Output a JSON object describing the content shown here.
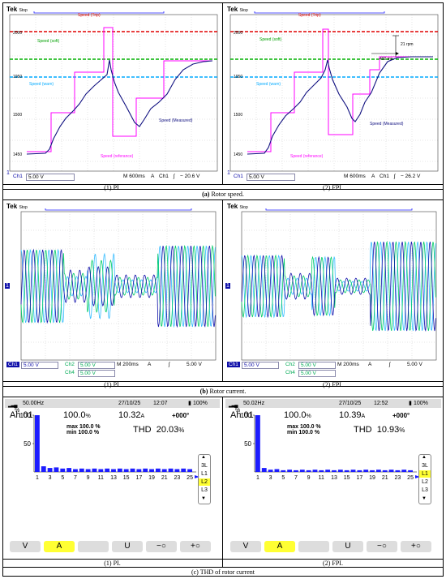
{
  "sections": [
    {
      "id": "a",
      "caption_letter": "(a)",
      "caption_text": "Rotor speed."
    },
    {
      "id": "b",
      "caption_letter": "(b)",
      "caption_text": "Rotor current."
    },
    {
      "id": "c",
      "caption_letter": "(c)",
      "caption_text": "THD of rotor current"
    }
  ],
  "sub_captions": {
    "left": "(1) PI.",
    "right": "(2) FPI."
  },
  "speed_scopes": [
    {
      "tek": "Tek",
      "stop": "Stop",
      "labels": {
        "trip": "Speed (Trip)",
        "soft": "Speed (soft)",
        "warn": "Speed (warn)",
        "ref": "Speed (referance)",
        "meas": "Speed (Measured)"
      },
      "yticks": [
        "2000",
        "1950",
        "1500",
        "1450"
      ],
      "status": {
        "ch": "Ch1",
        "volts": "5.00 V",
        "time": "M 600ms",
        "mode": "A",
        "trig_ch": "Ch1",
        "trig_sym": "ʃ",
        "trig_val": "− 20.6 V"
      },
      "marker": "1"
    },
    {
      "tek": "Tek",
      "stop": "Stop",
      "labels": {
        "trip": "Speed (Trip)",
        "soft": "Speed (soft)",
        "warn": "Speed (warn)",
        "ref": "Speed (referance)",
        "meas": "Speed (Measured)",
        "rpm": "21 rpm",
        "ms": "400 ms"
      },
      "yticks": [
        "2000",
        "1950",
        "1500",
        "1450"
      ],
      "status": {
        "ch": "Ch1",
        "volts": "5.00 V",
        "time": "M 600ms",
        "mode": "A",
        "trig_ch": "Ch1",
        "trig_sym": "ʃ",
        "trig_val": "− 26.2 V"
      },
      "marker": "1"
    }
  ],
  "current_scopes": [
    {
      "tek": "Tek",
      "stop": "Stop",
      "ch1": "Ch1",
      "ch1v": "5.00 V",
      "ch2": "Ch2",
      "ch2v": "5.00 V",
      "ch4": "Ch4",
      "ch4v": "5.00 V",
      "time": "M 200ms",
      "mode": "A",
      "trig_sym": "ʃ",
      "trig_val": "5.00 V",
      "marker": "1"
    },
    {
      "tek": "Tek",
      "stop": "Stop",
      "ch1": "Ch1",
      "ch1v": "5.00 V",
      "ch2": "Ch2",
      "ch2v": "5.00 V",
      "ch4": "Ch4",
      "ch4v": "5.00 V",
      "time": "M 200ms",
      "mode": "A",
      "trig_sym": "ʃ",
      "trig_val": "5.00 V",
      "marker": "1"
    }
  ],
  "thd_panels": [
    {
      "freq": "50.00Hz",
      "date": "27/10/25",
      "time": "12:07",
      "battery": "100%",
      "ah": "Ah 01",
      "pct": "100.0",
      "pct_unit": "%",
      "amps": "10.32",
      "amps_unit": "A",
      "angle": "+000°",
      "max_label": "max",
      "max_val": "100.0 %",
      "min_label": "min",
      "min_val": "100.0 %",
      "thd_label": "THD",
      "thd_val": "20.03",
      "thd_unit": "%",
      "phase_labels": [
        "3L",
        "L1",
        "L2",
        "L3"
      ],
      "selected_phase": "L2",
      "keys": [
        "V",
        "A",
        "",
        "U",
        "−○",
        "+○"
      ],
      "selected_key": "A"
    },
    {
      "freq": "50.02Hz",
      "date": "27/10/25",
      "time": "12:52",
      "battery": "100%",
      "ah": "Ah 01",
      "pct": "100.0",
      "pct_unit": "%",
      "amps": "10.39",
      "amps_unit": "A",
      "angle": "+000°",
      "max_label": "max",
      "max_val": "100.0 %",
      "min_label": "min",
      "min_val": "100.0 %",
      "thd_label": "THD",
      "thd_val": "10.93",
      "thd_unit": "%",
      "phase_labels": [
        "3L",
        "L1",
        "L2",
        "L3"
      ],
      "selected_phase": "L1",
      "keys": [
        "V",
        "A",
        "",
        "U",
        "−○",
        "+○"
      ],
      "selected_key": "A"
    }
  ],
  "chart_data": [
    {
      "type": "bar",
      "title": "",
      "ylabel": "%",
      "ylim": [
        0,
        100
      ],
      "yticks": [
        "100",
        "50",
        "0"
      ],
      "categories": [
        "1",
        "2",
        "3",
        "4",
        "5",
        "6",
        "7",
        "8",
        "9",
        "10",
        "11",
        "12",
        "13",
        "14",
        "15",
        "16",
        "17",
        "18",
        "19",
        "20",
        "21",
        "22",
        "23",
        "24",
        "25"
      ],
      "tick_labels": [
        "1",
        "3",
        "5",
        "7",
        "9",
        "11",
        "13",
        "15",
        "17",
        "19",
        "21",
        "23",
        "25"
      ],
      "values": [
        100,
        10,
        7,
        8,
        6,
        7,
        5,
        6,
        5,
        6,
        5,
        6,
        5,
        6,
        5,
        6,
        5,
        6,
        5,
        6,
        5,
        6,
        5,
        6,
        5
      ],
      "color": "#1c1cff"
    },
    {
      "type": "bar",
      "title": "",
      "ylabel": "%",
      "ylim": [
        0,
        100
      ],
      "yticks": [
        "100",
        "50",
        "0"
      ],
      "categories": [
        "1",
        "2",
        "3",
        "4",
        "5",
        "6",
        "7",
        "8",
        "9",
        "10",
        "11",
        "12",
        "13",
        "14",
        "15",
        "16",
        "17",
        "18",
        "19",
        "20",
        "21",
        "22",
        "23",
        "24",
        "25"
      ],
      "tick_labels": [
        "1",
        "3",
        "5",
        "7",
        "9",
        "11",
        "13",
        "15",
        "17",
        "19",
        "21",
        "23",
        "25"
      ],
      "values": [
        100,
        7,
        4,
        5,
        3,
        4,
        3,
        4,
        3,
        4,
        3,
        4,
        3,
        4,
        3,
        4,
        3,
        4,
        3,
        4,
        3,
        4,
        3,
        4,
        3
      ],
      "color": "#1c1cff"
    }
  ],
  "colors": {
    "trip": "#e00000",
    "soft": "#00b000",
    "warn": "#00aaff",
    "ref": "#ff00ff",
    "meas": "#101080",
    "ch1": "#1010aa",
    "ch2": "#00cc66",
    "ch4": "#33bbff"
  }
}
